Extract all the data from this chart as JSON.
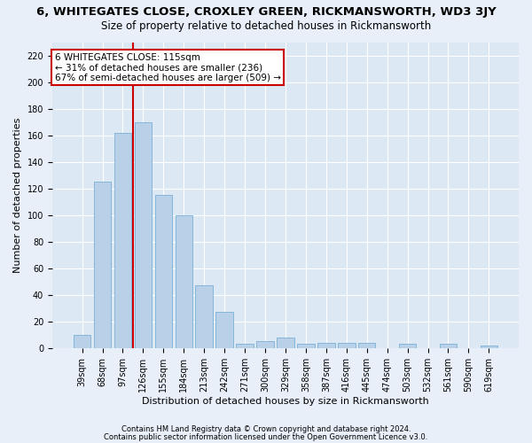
{
  "title": "6, WHITEGATES CLOSE, CROXLEY GREEN, RICKMANSWORTH, WD3 3JY",
  "subtitle": "Size of property relative to detached houses in Rickmansworth",
  "xlabel": "Distribution of detached houses by size in Rickmansworth",
  "ylabel": "Number of detached properties",
  "footnote1": "Contains HM Land Registry data © Crown copyright and database right 2024.",
  "footnote2": "Contains public sector information licensed under the Open Government Licence v3.0.",
  "categories": [
    "39sqm",
    "68sqm",
    "97sqm",
    "126sqm",
    "155sqm",
    "184sqm",
    "213sqm",
    "242sqm",
    "271sqm",
    "300sqm",
    "329sqm",
    "358sqm",
    "387sqm",
    "416sqm",
    "445sqm",
    "474sqm",
    "503sqm",
    "532sqm",
    "561sqm",
    "590sqm",
    "619sqm"
  ],
  "values": [
    10,
    125,
    162,
    170,
    115,
    100,
    47,
    27,
    3,
    5,
    8,
    3,
    4,
    4,
    4,
    0,
    3,
    0,
    3,
    0,
    2
  ],
  "bar_color": "#b8d0e8",
  "bar_edge_color": "#7aafd4",
  "vline_color": "#cc0000",
  "vline_pos": 2.5,
  "annotation_text": "6 WHITEGATES CLOSE: 115sqm\n← 31% of detached houses are smaller (236)\n67% of semi-detached houses are larger (509) →",
  "annotation_box_color": "#ffffff",
  "annotation_box_edge": "#cc0000",
  "background_color": "#e8eff8",
  "plot_bg_color": "#dce8f4",
  "ylim": [
    0,
    230
  ],
  "yticks": [
    0,
    20,
    40,
    60,
    80,
    100,
    120,
    140,
    160,
    180,
    200,
    220
  ],
  "title_fontsize": 9.5,
  "subtitle_fontsize": 8.5,
  "xlabel_fontsize": 8,
  "ylabel_fontsize": 8,
  "tick_fontsize": 7,
  "annot_fontsize": 7.5,
  "footnote_fontsize": 6
}
